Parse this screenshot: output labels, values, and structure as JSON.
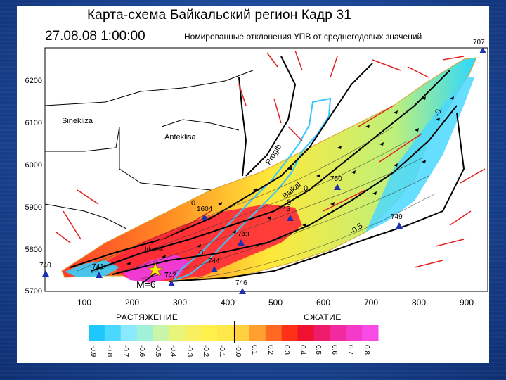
{
  "title": "Карта-схема Байкальский регион  Кадр 31",
  "datetime": "27.08.08 1:00:00",
  "subtitle": "Номированные отклонения УПВ от среднегодовых значений",
  "y_ticks": [
    "6200",
    "6100",
    "6000",
    "5900",
    "5800",
    "5700"
  ],
  "x_ticks": [
    "100",
    "200",
    "300",
    "400",
    "500",
    "600",
    "700",
    "800",
    "900"
  ],
  "regions": {
    "sinekliza": "Sinekliza",
    "anteklisa": "Anteklisa",
    "progib": "Progib",
    "baikal": "Baikal",
    "irkutsk": "Irkutsk"
  },
  "contour_labels": [
    "0",
    "0",
    "0",
    "-0.5",
    "-0.",
    "0"
  ],
  "stations": [
    "707",
    "750",
    "749",
    "740",
    "741",
    "742",
    "743",
    "744",
    "745",
    "746",
    "1604"
  ],
  "magnitude": "M=6",
  "scale": {
    "left_caption": "РАСТЯЖЕНИЕ",
    "right_caption": "СЖАТИЕ",
    "ticks": [
      "-0.9",
      "-0.8",
      "-0.7",
      "-0.6",
      "-0.5",
      "-0.4",
      "-0.3",
      "-0.2",
      "-0.1",
      "-0.0",
      "0.1",
      "0.2",
      "0.3",
      "0.4",
      "0.5",
      "0.6",
      "0.7",
      "0.8"
    ],
    "colors": [
      "#1ec8ff",
      "#4ad8ff",
      "#8ae8ff",
      "#9ff2d8",
      "#c8f5a8",
      "#e8f57a",
      "#f8f060",
      "#fff04a",
      "#ffe84a",
      "#ffd040",
      "#ffa030",
      "#ff6a20",
      "#ff3018",
      "#f01030",
      "#ee1a6a",
      "#f22aa0",
      "#f43ac8",
      "#f84ae6"
    ]
  }
}
